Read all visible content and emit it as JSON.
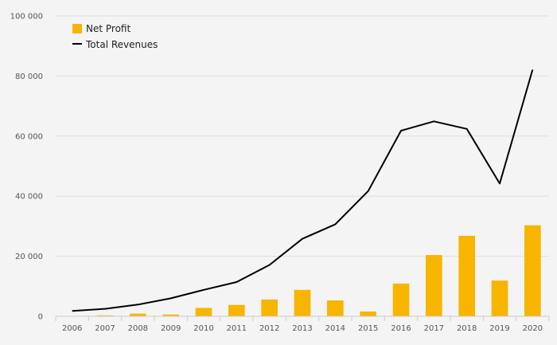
{
  "chart_data": {
    "type": "bar",
    "title": "",
    "xlabel": "",
    "ylabel": "",
    "categories": [
      "2006",
      "2007",
      "2008",
      "2009",
      "2010",
      "2011",
      "2012",
      "2013",
      "2014",
      "2015",
      "2016",
      "2017",
      "2018",
      "2019",
      "2020"
    ],
    "ylim": [
      0,
      100000
    ],
    "yticks": [
      0,
      20000,
      40000,
      60000,
      80000,
      100000
    ],
    "ytick_labels": [
      "0",
      "20 000",
      "40 000",
      "60 000",
      "80 000",
      "100 000"
    ],
    "grid": true,
    "legend_position": "top-left",
    "series": [
      {
        "name": "Net Profit",
        "type": "bar",
        "color": "#f7b500",
        "values": [
          0,
          300,
          900,
          600,
          2800,
          3800,
          5600,
          8800,
          5300,
          1600,
          10900,
          20400,
          26800,
          11900,
          30300
        ]
      },
      {
        "name": "Total Revenues",
        "type": "line",
        "color": "#000000",
        "values": [
          1800,
          2500,
          3900,
          6000,
          8800,
          11400,
          17100,
          25800,
          30600,
          41700,
          61800,
          64900,
          62400,
          44200,
          82100
        ]
      }
    ]
  }
}
